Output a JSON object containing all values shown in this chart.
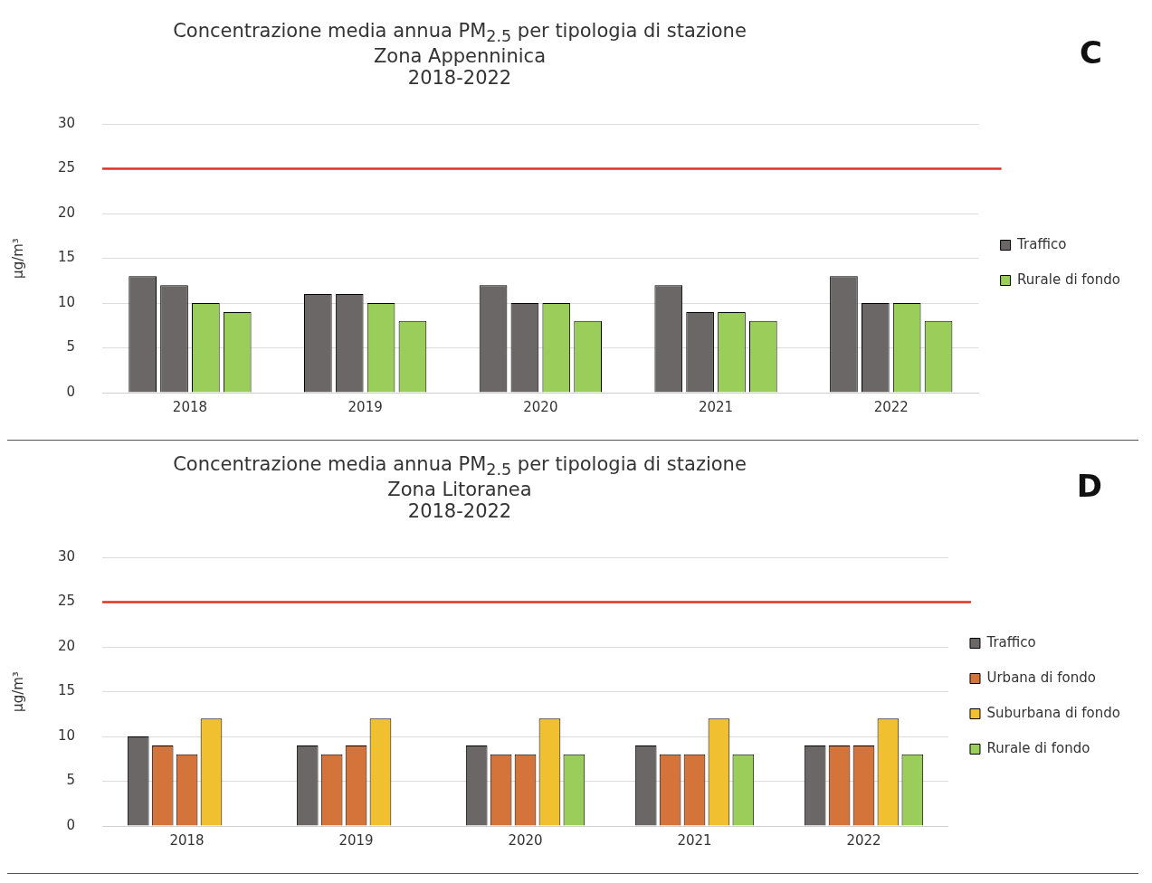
{
  "chart_data": [
    {
      "type": "bar",
      "title": "Concentrazione media annua PM$_{2.5}$ per tipologia di stazione",
      "subtitle": "Zona Appenninica\n2018-2022",
      "ylabel": "µg/m³",
      "annotations": [
        "C"
      ],
      "categories": [
        "2018",
        "2019",
        "2020",
        "2021",
        "2022"
      ],
      "series": [
        {
          "name": "Traffico",
          "color": "#6b6767",
          "values": [
            13,
            11,
            12,
            12,
            13
          ]
        },
        {
          "color": "#6b6767",
          "values": [
            12,
            11,
            10,
            9,
            10
          ]
        },
        {
          "color": "#9acd5a",
          "values": [
            10,
            10,
            10,
            9,
            10
          ]
        },
        {
          "name": "Rurale di fondo",
          "color": "#9acd5a",
          "values": [
            9,
            8,
            8,
            8,
            8
          ]
        }
      ],
      "ylim": [
        0,
        30
      ],
      "yticks": [
        0,
        5,
        10,
        15,
        20,
        25,
        30
      ],
      "grid": "y",
      "legend": "right",
      "ref_lines": [
        {
          "axis": "y",
          "value": 25,
          "color": "#e0301e"
        }
      ]
    },
    {
      "type": "bar",
      "title": "Concentrazione media annua PM$_{2.5}$ per tipologia di stazione",
      "subtitle": "Zona Litoranea\n2018-2022",
      "ylabel": "µg/m³",
      "annotations": [
        "D"
      ],
      "categories": [
        "2018",
        "2019",
        "2020",
        "2021",
        "2022"
      ],
      "series": [
        {
          "name": "Traffico",
          "color": "#6b6767",
          "values": [
            10,
            9,
            9,
            9,
            9
          ]
        },
        {
          "name": "Urbana di fondo",
          "color": "#d4743a",
          "values": [
            9,
            8,
            8,
            8,
            9
          ]
        },
        {
          "color": "#d4743a",
          "values": [
            8,
            9,
            8,
            8,
            9
          ]
        },
        {
          "name": "Suburbana di fondo",
          "color": "#f0c030",
          "values": [
            12,
            12,
            12,
            12,
            12
          ]
        },
        {
          "name": "Rurale di fondo",
          "color": "#9acd5a",
          "values": [
            null,
            null,
            8,
            8,
            8
          ]
        }
      ],
      "ylim": [
        0,
        30
      ],
      "yticks": [
        0,
        5,
        10,
        15,
        20,
        25,
        30
      ],
      "grid": "y",
      "legend": "right",
      "ref_lines": [
        {
          "axis": "y",
          "value": 25,
          "color": "#e0301e"
        }
      ]
    }
  ]
}
